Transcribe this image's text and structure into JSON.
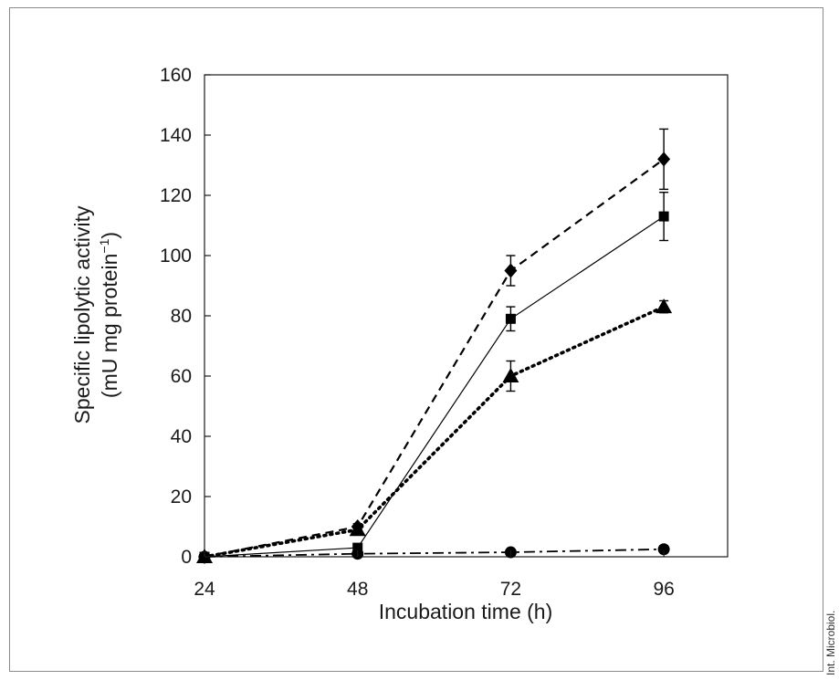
{
  "chart_data": {
    "type": "line",
    "title": "",
    "xlabel": "Incubation time (h)",
    "ylabel_line1": "Specific lipolytic activity",
    "ylabel_line2_prefix": "(mU mg protein",
    "ylabel_line2_sup": "−1",
    "ylabel_line2_suffix": ")",
    "x": [
      24,
      48,
      72,
      96
    ],
    "x_tick_labels": [
      "24",
      "48",
      "72",
      "96"
    ],
    "xlim": [
      24,
      106
    ],
    "ylim": [
      0,
      160
    ],
    "y_ticks": [
      0,
      20,
      40,
      60,
      80,
      100,
      120,
      140,
      160
    ],
    "y_tick_labels": [
      "0",
      "20",
      "40",
      "60",
      "80",
      "100",
      "120",
      "140",
      "160"
    ],
    "grid": false,
    "legend": "none",
    "series": [
      {
        "marker": "diamond",
        "line": "dashed",
        "color": "#000000",
        "values": [
          0,
          10,
          95,
          132
        ],
        "errors": [
          0,
          1,
          5,
          10
        ]
      },
      {
        "marker": "square",
        "line": "solid",
        "color": "#000000",
        "values": [
          0,
          3,
          79,
          113
        ],
        "errors": [
          0,
          0.5,
          4,
          8
        ]
      },
      {
        "marker": "triangle",
        "line": "dotted",
        "color": "#000000",
        "values": [
          0,
          9,
          60,
          83
        ],
        "errors": [
          0,
          1,
          5,
          2
        ]
      },
      {
        "marker": "circle",
        "line": "dashdot",
        "color": "#000000",
        "values": [
          0,
          1,
          1.5,
          2.5
        ],
        "errors": [
          0,
          0,
          0,
          0
        ]
      }
    ]
  },
  "source_note": "Int. Microbiol."
}
